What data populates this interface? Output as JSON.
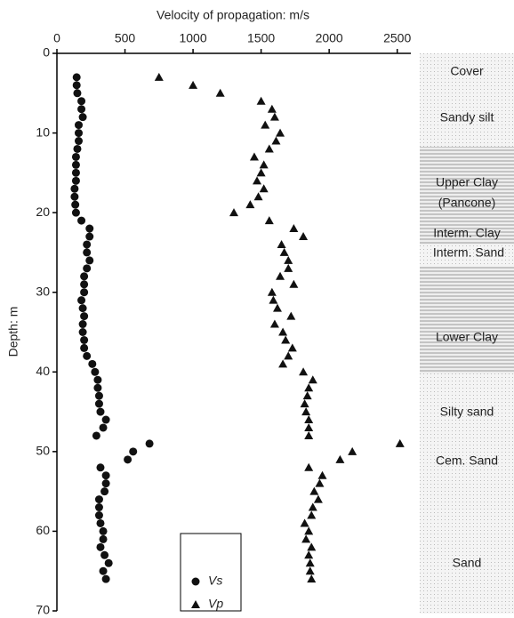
{
  "chart_data": {
    "type": "scatter",
    "x_label": "Velocity of propagation: m/s",
    "y_label": "Depth: m",
    "xlim": [
      0,
      2600
    ],
    "xticks": [
      0,
      500,
      1000,
      1500,
      2000,
      2500
    ],
    "ylim": [
      0,
      70
    ],
    "yticks": [
      0,
      10,
      20,
      30,
      40,
      50,
      60,
      70
    ],
    "y_inverted": true,
    "x_axis_position": "top",
    "legend_position": "lower center",
    "series": [
      {
        "name": "Vs",
        "marker": "circle",
        "color": "#111",
        "x": [
          145,
          145,
          150,
          180,
          180,
          190,
          160,
          160,
          160,
          150,
          140,
          140,
          140,
          140,
          130,
          130,
          135,
          140,
          180,
          240,
          240,
          220,
          220,
          240,
          220,
          200,
          200,
          200,
          180,
          190,
          200,
          190,
          190,
          200,
          200,
          220,
          260,
          280,
          300,
          300,
          310,
          310,
          320,
          360,
          340,
          290,
          680,
          560,
          520,
          320,
          360,
          360,
          350,
          310,
          310,
          310,
          320,
          340,
          340,
          320,
          350,
          380,
          340,
          360
        ],
        "values": [
          3,
          4,
          5,
          6,
          7,
          8,
          9,
          10,
          11,
          12,
          13,
          14,
          15,
          16,
          17,
          18,
          19,
          20,
          21,
          22,
          23,
          24,
          25,
          26,
          27,
          28,
          29,
          30,
          31,
          32,
          33,
          34,
          35,
          36,
          37,
          38,
          39,
          40,
          41,
          42,
          43,
          44,
          45,
          46,
          47,
          48,
          49,
          50,
          51,
          52,
          53,
          54,
          55,
          56,
          57,
          58,
          59,
          60,
          61,
          62,
          63,
          64,
          65,
          66
        ]
      },
      {
        "name": "Vp",
        "marker": "triangle",
        "color": "#111",
        "x": [
          750,
          1000,
          1200,
          1500,
          1580,
          1600,
          1530,
          1640,
          1610,
          1560,
          1450,
          1520,
          1500,
          1470,
          1520,
          1480,
          1420,
          1300,
          1560,
          1740,
          1810,
          1650,
          1670,
          1700,
          1700,
          1640,
          1740,
          1580,
          1590,
          1620,
          1720,
          1600,
          1660,
          1680,
          1730,
          1700,
          1660,
          1810,
          1880,
          1850,
          1840,
          1820,
          1830,
          1850,
          1850,
          1850,
          2520,
          2170,
          2080,
          1850,
          1950,
          1930,
          1890,
          1920,
          1880,
          1870,
          1820,
          1850,
          1830,
          1870,
          1850,
          1860,
          1860,
          1870
        ],
        "values": [
          3,
          4,
          5,
          6,
          7,
          8,
          9,
          10,
          11,
          12,
          13,
          14,
          15,
          16,
          17,
          18,
          19,
          20,
          21,
          22,
          23,
          24,
          25,
          26,
          27,
          28,
          29,
          30,
          31,
          32,
          33,
          34,
          35,
          36,
          37,
          38,
          39,
          40,
          41,
          42,
          43,
          44,
          45,
          46,
          47,
          48,
          49,
          50,
          51,
          52,
          53,
          54,
          55,
          56,
          57,
          58,
          59,
          60,
          61,
          62,
          63,
          64,
          65,
          66
        ]
      }
    ],
    "layers": [
      "Cover",
      "Sandy silt",
      "Upper Clay",
      "(Pancone)",
      "Interm. Clay",
      "Interm. Sand",
      "Lower Clay",
      "Silty sand",
      "Cem. Sand",
      "Sand"
    ]
  }
}
